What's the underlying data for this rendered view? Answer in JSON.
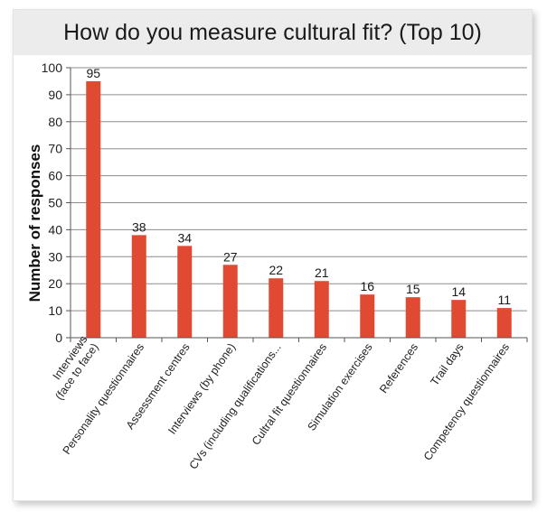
{
  "chart_data": {
    "type": "bar",
    "title": "How do you measure cultural fit? (Top 10)",
    "xlabel": "",
    "ylabel": "Number of responses",
    "ylim": [
      0,
      100
    ],
    "yticks": [
      0,
      10,
      20,
      30,
      40,
      50,
      60,
      70,
      80,
      90,
      100
    ],
    "grid": true,
    "legend": "none",
    "bar_color": "#e04a33",
    "categories": [
      [
        "Interviews",
        "(face to face)"
      ],
      [
        "Personality questionnaires"
      ],
      [
        "Assessment centres"
      ],
      [
        "Interviews (by phone)"
      ],
      [
        "CVs (including qualifications..."
      ],
      [
        "Cultral fit questionnaires"
      ],
      [
        "Simulation exercises"
      ],
      [
        "References"
      ],
      [
        "Trail days"
      ],
      [
        "Competency questionnaires"
      ]
    ],
    "values": [
      95,
      38,
      34,
      27,
      22,
      21,
      16,
      15,
      14,
      11
    ],
    "data_labels": [
      "95",
      "38",
      "34",
      "27",
      "22",
      "21",
      "16",
      "15",
      "14",
      "11"
    ]
  }
}
